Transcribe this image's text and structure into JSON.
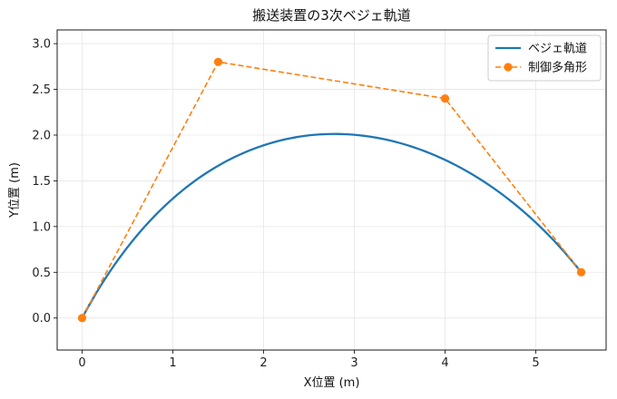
{
  "chart_data": {
    "type": "line",
    "title": "搬送装置の3次ベジェ軌道",
    "xlabel": "X位置 (m)",
    "ylabel": "Y位置 (m)",
    "xlim": [
      -0.275,
      5.775
    ],
    "ylim": [
      -0.35,
      3.15
    ],
    "xticks": [
      0,
      1,
      2,
      3,
      4,
      5
    ],
    "yticks": [
      0.0,
      0.5,
      1.0,
      1.5,
      2.0,
      2.5,
      3.0
    ],
    "xtick_labels": [
      "0",
      "1",
      "2",
      "3",
      "4",
      "5"
    ],
    "ytick_labels": [
      "0.0",
      "0.5",
      "1.0",
      "1.5",
      "2.0",
      "2.5",
      "3.0"
    ],
    "grid": true,
    "legend_position": "top-right",
    "series": [
      {
        "name": "ベジェ軌道",
        "kind": "bezier-curve",
        "color": "#1f77b4",
        "style": "solid"
      },
      {
        "name": "制御多角形",
        "kind": "control-polygon",
        "color": "#ff7f0e",
        "style": "dashed",
        "marker": "circle",
        "x": [
          0,
          1.5,
          4.0,
          5.5
        ],
        "y": [
          0,
          2.8,
          2.4,
          0.5
        ]
      }
    ]
  }
}
